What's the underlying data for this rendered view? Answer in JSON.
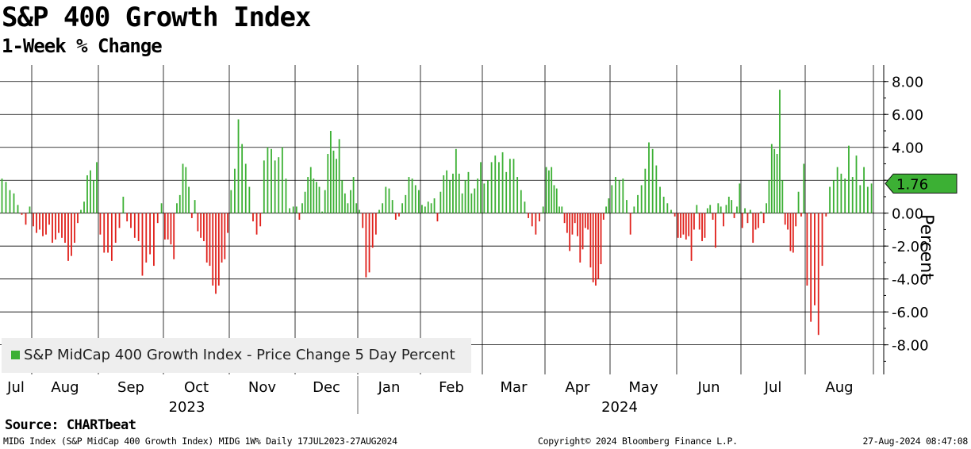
{
  "title": "S&P 400 Growth Index",
  "subtitle": "1-Week % Change",
  "source": "Source: CHARTbeat",
  "footer": {
    "left": "MIDG Index (S&P MidCap 400 Growth Index) MIDG 1W% Daily 17JUL2023-27AUG2024",
    "center": "Copyright© 2024 Bloomberg Finance L.P.",
    "right": "27-Aug-2024 08:47:08"
  },
  "colors": {
    "positive": "#3cb034",
    "negative": "#e0201b",
    "last_label_bg": "#3cb034"
  },
  "chart_data": {
    "type": "bar",
    "title": "S&P 400 Growth Index",
    "subtitle": "1-Week % Change",
    "ylabel": "Percent",
    "ylim": [
      -9.8,
      9
    ],
    "yticks": [
      -8,
      -6,
      -4,
      -2,
      0,
      2,
      4,
      6,
      8
    ],
    "ytick_labels": [
      "-8.00",
      "-6.00",
      "-4.00",
      "-2.00",
      "0.00",
      "2.00",
      "4.00",
      "6.00",
      "8.00"
    ],
    "grid": true,
    "legend": {
      "position": "bottom-left",
      "entries": [
        "S&P MidCap 400 Growth Index - Price Change 5 Day Percent"
      ]
    },
    "last_value_label": "1.76",
    "x_months": [
      "Jul",
      "Aug",
      "Sep",
      "Oct",
      "Nov",
      "Dec",
      "Jan",
      "Feb",
      "Mar",
      "Apr",
      "May",
      "Jun",
      "Jul",
      "Aug"
    ],
    "x_years": [
      "2023",
      "2024"
    ],
    "series": [
      {
        "name": "S&P MidCap 400 Growth Index - Price Change 5 Day Percent",
        "segments": [
          {
            "month": "Jul",
            "year": 2023,
            "values": [
              2.1,
              1.9,
              1.4,
              1.2,
              0.5,
              -0.1,
              -0.7,
              0.4
            ]
          },
          {
            "month": "Aug",
            "year": 2023,
            "values": [
              -0.8,
              -1.2,
              -1.0,
              -1.4,
              -1.3,
              -0.7,
              -1.8,
              -1.6,
              -1.2,
              -1.5,
              -1.8,
              -2.9,
              -2.6,
              -1.8,
              -0.6,
              0.2,
              0.7,
              2.3,
              2.6,
              2.0,
              3.1
            ]
          },
          {
            "month": "Sep",
            "year": 2023,
            "values": [
              -1.3,
              -2.4,
              -2.4,
              -2.9,
              -1.8,
              -0.9,
              1.0,
              -0.5,
              -0.9,
              -1.5,
              -1.7,
              -3.8,
              -3.0,
              -2.5,
              -3.2,
              -0.6,
              0.6
            ]
          },
          {
            "month": "Oct",
            "year": 2023,
            "values": [
              -1.6,
              -1.6,
              -1.9,
              -2.8,
              0.6,
              1.1,
              3.0,
              2.8,
              1.6,
              -0.3,
              0.8,
              -1.1,
              -1.5,
              -1.7,
              -3.0,
              -3.2,
              -4.4,
              -4.9,
              -4.4,
              -3.0,
              -2.8,
              -1.2
            ]
          },
          {
            "month": "Nov",
            "year": 2023,
            "values": [
              1.4,
              2.7,
              5.7,
              4.2,
              3.0,
              1.6,
              -0.5,
              -1.3,
              -0.8,
              3.2,
              4.0,
              3.9,
              3.2,
              3.4,
              4.0,
              2.1,
              0.3,
              0.4
            ]
          },
          {
            "month": "Dec",
            "year": 2023,
            "values": [
              0.4,
              -0.4,
              0.6,
              1.3,
              2.2,
              2.8,
              2.1,
              1.9,
              1.6,
              0.1,
              1.4,
              3.6,
              5.0,
              3.8,
              3.3,
              4.5,
              2.0,
              1.2,
              0.6,
              1.4,
              2.2,
              0.6
            ]
          },
          {
            "month": "Jan",
            "year": 2024,
            "values": [
              0.2,
              -0.9,
              -3.9,
              -3.6,
              -2.1,
              -1.3,
              0.2,
              0.6,
              1.6,
              1.5,
              0.8,
              -0.4,
              -0.2,
              0.6,
              1.1,
              2.2,
              2.1,
              1.7,
              1.4
            ]
          },
          {
            "month": "Feb",
            "year": 2024,
            "values": [
              0.5,
              0.4,
              0.7,
              0.6,
              0.9,
              -0.5,
              1.3,
              2.3,
              2.6,
              2.0,
              2.4,
              3.9,
              2.4,
              1.2,
              2.0,
              2.5,
              1.2,
              1.5,
              2.1,
              3.1
            ]
          },
          {
            "month": "Mar",
            "year": 2024,
            "values": [
              1.8,
              2.0,
              3.1,
              3.5,
              3.1,
              3.7,
              2.5,
              3.3,
              3.3,
              2.2,
              1.4,
              0.7,
              -0.3,
              -0.8,
              -1.3,
              -0.5,
              0.4
            ]
          },
          {
            "month": "Apr",
            "year": 2024,
            "values": [
              2.8,
              2.6,
              2.8,
              1.7,
              1.5,
              0.4,
              0.4,
              -0.6,
              -1.2,
              -2.3,
              -1.3,
              -0.6,
              -1.4,
              -3.0,
              -2.2,
              -0.9,
              -1.0,
              -3.3,
              -4.2,
              -4.4,
              -4.0,
              -3.1,
              -0.4,
              0.4,
              0.9
            ]
          },
          {
            "month": "May",
            "year": 2024,
            "values": [
              1.7,
              2.2,
              2.0,
              2.1,
              0.8,
              -1.3,
              0.4,
              1.1,
              1.7,
              2.7,
              4.3,
              3.9,
              2.9,
              1.6,
              1.0,
              0.6,
              0.2,
              -0.2
            ]
          },
          {
            "month": "Jun",
            "year": 2024,
            "values": [
              -1.5,
              -1.5,
              -1.3,
              -1.6,
              -1.4,
              -2.9,
              -1.0,
              0.5,
              -1.0,
              -1.7,
              -1.5,
              0.3,
              0.5,
              -0.4,
              -2.1,
              0.6,
              0.4,
              -0.8,
              0.5,
              1.0,
              0.8,
              -0.3,
              0.4,
              1.8
            ]
          },
          {
            "month": "Jul",
            "year": 2024,
            "values": [
              -0.9,
              0.3,
              -0.6,
              0.2,
              -1.8,
              -1.0,
              -0.9,
              0.1,
              -0.6,
              0.6,
              2.0,
              4.2,
              3.9,
              3.6,
              7.5,
              2.0,
              -0.7,
              -1.0,
              -2.3,
              -2.4,
              -0.8,
              1.3,
              -0.2,
              3.0
            ]
          },
          {
            "month": "Aug",
            "year": 2024,
            "values": [
              -4.4,
              -6.6,
              -5.6,
              -7.4,
              -3.2,
              -0.2,
              1.6,
              2.0,
              2.8,
              2.4,
              2.1,
              4.1,
              2.2,
              3.5,
              1.7,
              2.8,
              1.6,
              1.8
            ]
          }
        ]
      }
    ]
  }
}
